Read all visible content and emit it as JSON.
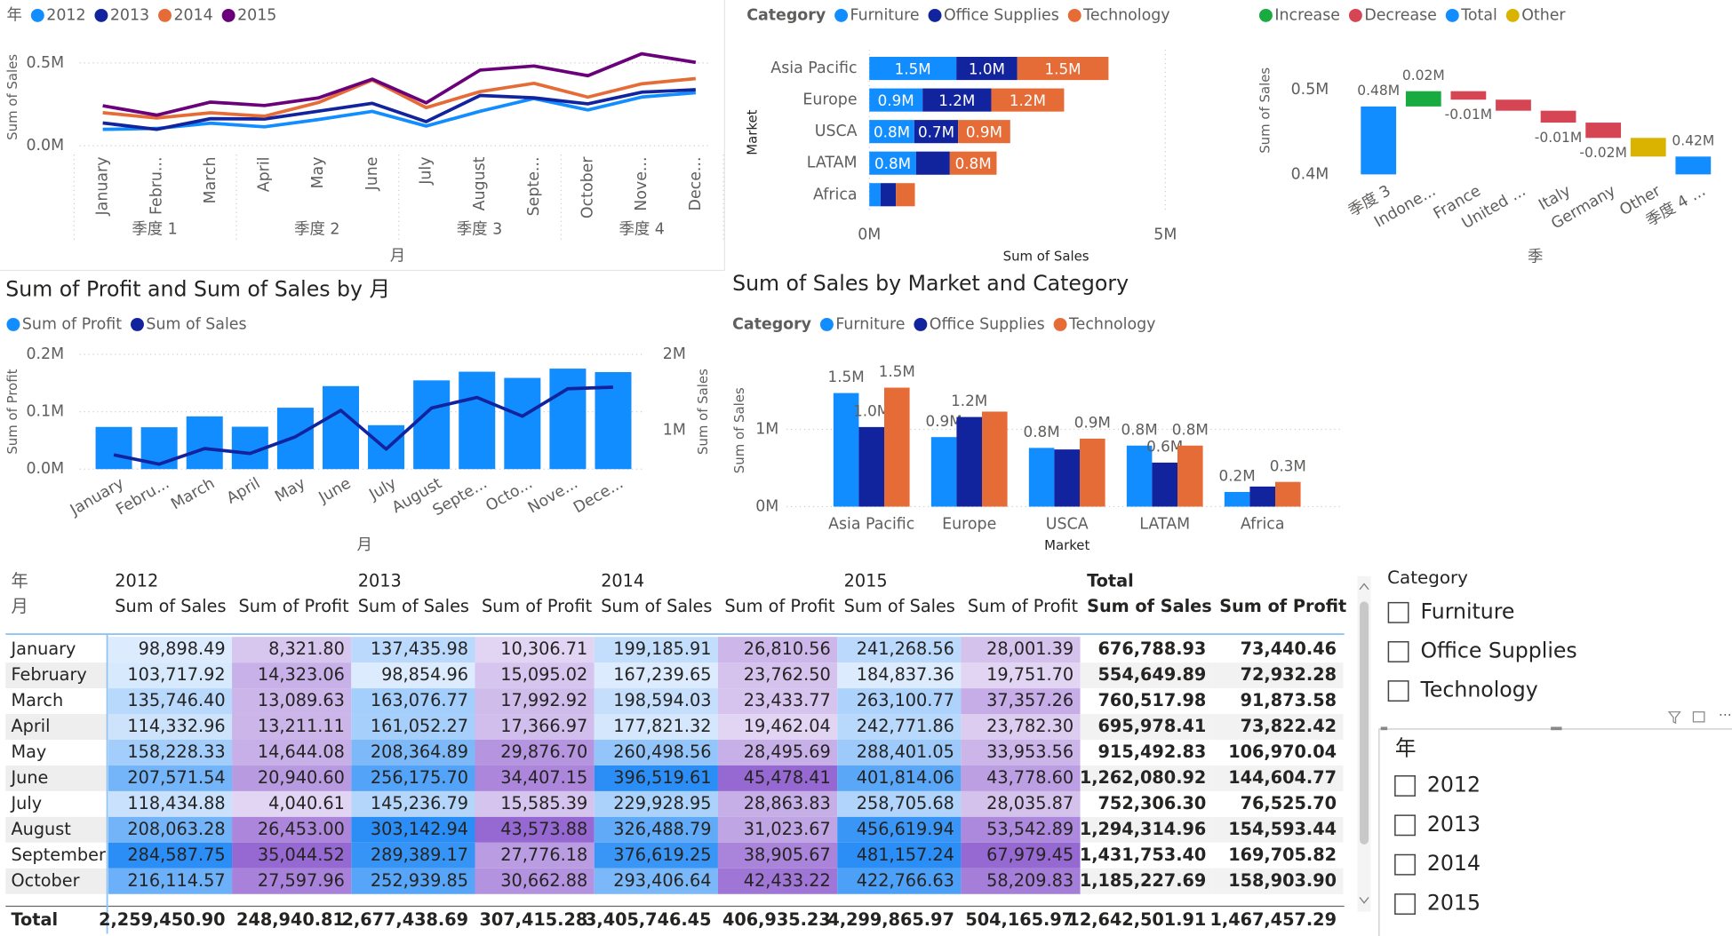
{
  "chart_data": [
    {
      "type": "line",
      "legend_title": "年",
      "x_label": "月",
      "y_label": "Sum of Sales",
      "categories": [
        "January",
        "Febru...",
        "March",
        "April",
        "May",
        "June",
        "July",
        "August",
        "Septe...",
        "October",
        "Nove...",
        "Dece..."
      ],
      "x_groups": [
        "季度 1",
        "季度 2",
        "季度 3",
        "季度 4"
      ],
      "ylim": [
        0,
        600000
      ],
      "yticks": [
        {
          "value": 0,
          "label": "0.0M"
        },
        {
          "value": 500000,
          "label": "0.5M"
        }
      ],
      "grid": true,
      "series": [
        {
          "name": "2012",
          "color": "#118dff",
          "values": [
            98898,
            103718,
            135746,
            114333,
            158228,
            207572,
            118435,
            208063,
            284588,
            216115,
            293947,
            319807
          ]
        },
        {
          "name": "2013",
          "color": "#12239e",
          "values": [
            137436,
            98855,
            163077,
            161052,
            208365,
            256176,
            145237,
            303143,
            289389,
            252940,
            323512,
            338257
          ]
        },
        {
          "name": "2014",
          "color": "#e66c37",
          "values": [
            199186,
            167240,
            198594,
            177821,
            260499,
            396520,
            229929,
            326489,
            376619,
            293407,
            373989,
            405455
          ]
        },
        {
          "name": "2015",
          "color": "#6b007b",
          "values": [
            241269,
            184837,
            263101,
            242772,
            288401,
            401814,
            258706,
            456620,
            481157,
            422767,
            555270,
            503153
          ]
        }
      ]
    },
    {
      "type": "hbar",
      "legend_title": "Category",
      "x_label": "Sum of Sales",
      "y_label": "Market",
      "categories": [
        "Asia Pacific",
        "Europe",
        "USCA",
        "LATAM",
        "Africa"
      ],
      "xlim": [
        0,
        5000000
      ],
      "xticks": [
        {
          "value": 0,
          "label": "0M"
        },
        {
          "value": 5000000,
          "label": "5M"
        }
      ],
      "series": [
        {
          "name": "Furniture",
          "color": "#118dff",
          "values": [
            1470000,
            900000,
            760000,
            790000,
            190000
          ],
          "value_labels": [
            "1.5M",
            "0.9M",
            "0.8M",
            "0.8M",
            null
          ]
        },
        {
          "name": "Office Supplies",
          "color": "#12239e",
          "values": [
            1030000,
            1160000,
            740000,
            570000,
            260000
          ],
          "value_labels": [
            "1.0M",
            "1.2M",
            "0.7M",
            null,
            null
          ]
        },
        {
          "name": "Technology",
          "color": "#e66c37",
          "values": [
            1540000,
            1230000,
            880000,
            790000,
            320000
          ],
          "value_labels": [
            "1.5M",
            "1.2M",
            "0.9M",
            "0.8M",
            null
          ]
        }
      ]
    },
    {
      "type": "waterfall",
      "x_label": "季",
      "y_label": "Sum of Sales",
      "categories": [
        "季度 3",
        "Indone...",
        "France",
        "United ...",
        "Italy",
        "Germany",
        "Other",
        "季度 4 ..."
      ],
      "legend": [
        {
          "name": "Increase",
          "color": "#1aab40"
        },
        {
          "name": "Decrease",
          "color": "#d64554"
        },
        {
          "name": "Total",
          "color": "#118dff"
        },
        {
          "name": "Other",
          "color": "#d9b300"
        }
      ],
      "values": [
        480000,
        18000,
        -10000,
        -13000,
        -14000,
        -18000,
        -22000,
        421000
      ],
      "value_labels": [
        "0.48M",
        "0.02M",
        "-0.01M",
        null,
        "-0.01M",
        "-0.02M",
        null,
        "0.42M"
      ],
      "ylim": [
        400000,
        530000
      ],
      "yticks": [
        {
          "value": 400000,
          "label": "0.4M"
        },
        {
          "value": 500000,
          "label": "0.5M"
        }
      ]
    },
    {
      "type": "combo",
      "title": "Sum of Profit and Sum of Sales by 月",
      "x_label": "月",
      "y_label": "Sum of Profit",
      "y2_label": "Sum of Sales",
      "categories": [
        "January",
        "Febru...",
        "March",
        "April",
        "May",
        "June",
        "July",
        "August",
        "Septe...",
        "Octo...",
        "Nove...",
        "Dece..."
      ],
      "ylim": [
        0,
        200000
      ],
      "yticks": [
        {
          "value": 0,
          "label": "0.0M"
        },
        {
          "value": 100000,
          "label": "0.1M"
        },
        {
          "value": 200000,
          "label": "0.2M"
        }
      ],
      "y2lim": [
        490000,
        2000000
      ],
      "y2ticks": [
        {
          "value": 1000000,
          "label": "1M"
        },
        {
          "value": 2000000,
          "label": "2M"
        }
      ],
      "grid": true,
      "series": [
        {
          "name": "Sum of Profit",
          "color": "#118dff",
          "kind": "bar",
          "values": [
            73440.46,
            72932.28,
            91873.58,
            73822.42,
            106970.04,
            144604.77,
            76525.7,
            154593.44,
            169705.82,
            158903.9,
            175083.19,
            169001.69
          ]
        },
        {
          "name": "Sum of Sales",
          "color": "#12239e",
          "kind": "line",
          "axis": "y2",
          "values": [
            676788.93,
            554649.89,
            760517.98,
            695978.41,
            915492.83,
            1262080.92,
            752306.3,
            1294314.96,
            1431753.4,
            1185227.69,
            1546719.15,
            1566671.45
          ]
        }
      ]
    },
    {
      "type": "column",
      "title": "Sum of Sales by Market and Category",
      "legend_title": "Category",
      "x_label": "Market",
      "y_label": "Sum of Sales",
      "categories": [
        "Asia Pacific",
        "Europe",
        "USCA",
        "LATAM",
        "Africa"
      ],
      "ylim": [
        0,
        1800000
      ],
      "yticks": [
        {
          "value": 0,
          "label": "0M"
        },
        {
          "value": 1000000,
          "label": "1M"
        }
      ],
      "grid": true,
      "series": [
        {
          "name": "Furniture",
          "color": "#118dff",
          "values": [
            1470000,
            900000,
            760000,
            790000,
            190000
          ],
          "value_labels": [
            "1.5M",
            "0.9M",
            "0.8M",
            "0.8M",
            "0.2M"
          ]
        },
        {
          "name": "Office Supplies",
          "color": "#12239e",
          "values": [
            1030000,
            1160000,
            740000,
            570000,
            260000
          ],
          "value_labels": [
            "1.0M",
            "1.2M",
            null,
            "0.6M",
            null
          ]
        },
        {
          "name": "Technology",
          "color": "#e66c37",
          "values": [
            1540000,
            1230000,
            880000,
            790000,
            320000
          ],
          "value_labels": [
            "1.5M",
            null,
            "0.9M",
            "0.8M",
            "0.3M"
          ]
        }
      ]
    }
  ],
  "table": {
    "corner": [
      "年",
      "月"
    ],
    "groups": [
      "2012",
      "2013",
      "2014",
      "2015",
      "Total"
    ],
    "measures": [
      "Sum of Sales",
      "Sum of Profit",
      "Sum of Sales",
      "Sum of Profit",
      "Sum of Sales",
      "Sum of Profit",
      "Sum of Sales",
      "Sum of Profit",
      "Sum of Sales",
      "Sum of Profit"
    ],
    "rows": [
      [
        "January",
        "98,898.49",
        "8,321.80",
        "137,435.98",
        "10,306.71",
        "199,185.91",
        "26,810.56",
        "241,268.56",
        "28,001.39",
        "676,788.93",
        "73,440.46"
      ],
      [
        "February",
        "103,717.92",
        "14,323.06",
        "98,854.96",
        "15,095.02",
        "167,239.65",
        "23,762.50",
        "184,837.36",
        "19,751.70",
        "554,649.89",
        "72,932.28"
      ],
      [
        "March",
        "135,746.40",
        "13,089.63",
        "163,076.77",
        "17,992.92",
        "198,594.03",
        "23,433.77",
        "263,100.77",
        "37,357.26",
        "760,517.98",
        "91,873.58"
      ],
      [
        "April",
        "114,332.96",
        "13,211.11",
        "161,052.27",
        "17,366.97",
        "177,821.32",
        "19,462.04",
        "242,771.86",
        "23,782.30",
        "695,978.41",
        "73,822.42"
      ],
      [
        "May",
        "158,228.33",
        "14,644.08",
        "208,364.89",
        "29,876.70",
        "260,498.56",
        "28,495.69",
        "288,401.05",
        "33,953.56",
        "915,492.83",
        "106,970.04"
      ],
      [
        "June",
        "207,571.54",
        "20,940.60",
        "256,175.70",
        "34,407.15",
        "396,519.61",
        "45,478.41",
        "401,814.06",
        "43,778.60",
        "1,262,080.92",
        "144,604.77"
      ],
      [
        "July",
        "118,434.88",
        "4,040.61",
        "145,236.79",
        "15,585.39",
        "229,928.95",
        "28,863.83",
        "258,705.68",
        "28,035.87",
        "752,306.30",
        "76,525.70"
      ],
      [
        "August",
        "208,063.28",
        "26,453.00",
        "303,142.94",
        "43,573.88",
        "326,488.79",
        "31,023.67",
        "456,619.94",
        "53,542.89",
        "1,294,314.96",
        "154,593.44"
      ],
      [
        "September",
        "284,587.75",
        "35,044.52",
        "289,389.17",
        "27,776.18",
        "376,619.25",
        "38,905.67",
        "481,157.24",
        "67,979.45",
        "1,431,753.40",
        "169,705.82"
      ],
      [
        "October",
        "216,114.57",
        "27,597.96",
        "252,939.85",
        "30,662.88",
        "293,406.64",
        "42,433.22",
        "422,766.63",
        "58,209.83",
        "1,185,227.69",
        "158,903.90"
      ]
    ],
    "total": [
      "Total",
      "2,259,450.90",
      "248,940.81",
      "2,677,438.69",
      "307,415.28",
      "3,405,746.45",
      "406,935.23",
      "4,299,865.97",
      "504,165.97",
      "12,642,501.91",
      "1,467,457.29"
    ]
  },
  "slicers": [
    {
      "title": "Category",
      "items": [
        "Furniture",
        "Office Supplies",
        "Technology"
      ]
    },
    {
      "title": "年",
      "items": [
        "2012",
        "2013",
        "2014",
        "2015"
      ]
    }
  ]
}
